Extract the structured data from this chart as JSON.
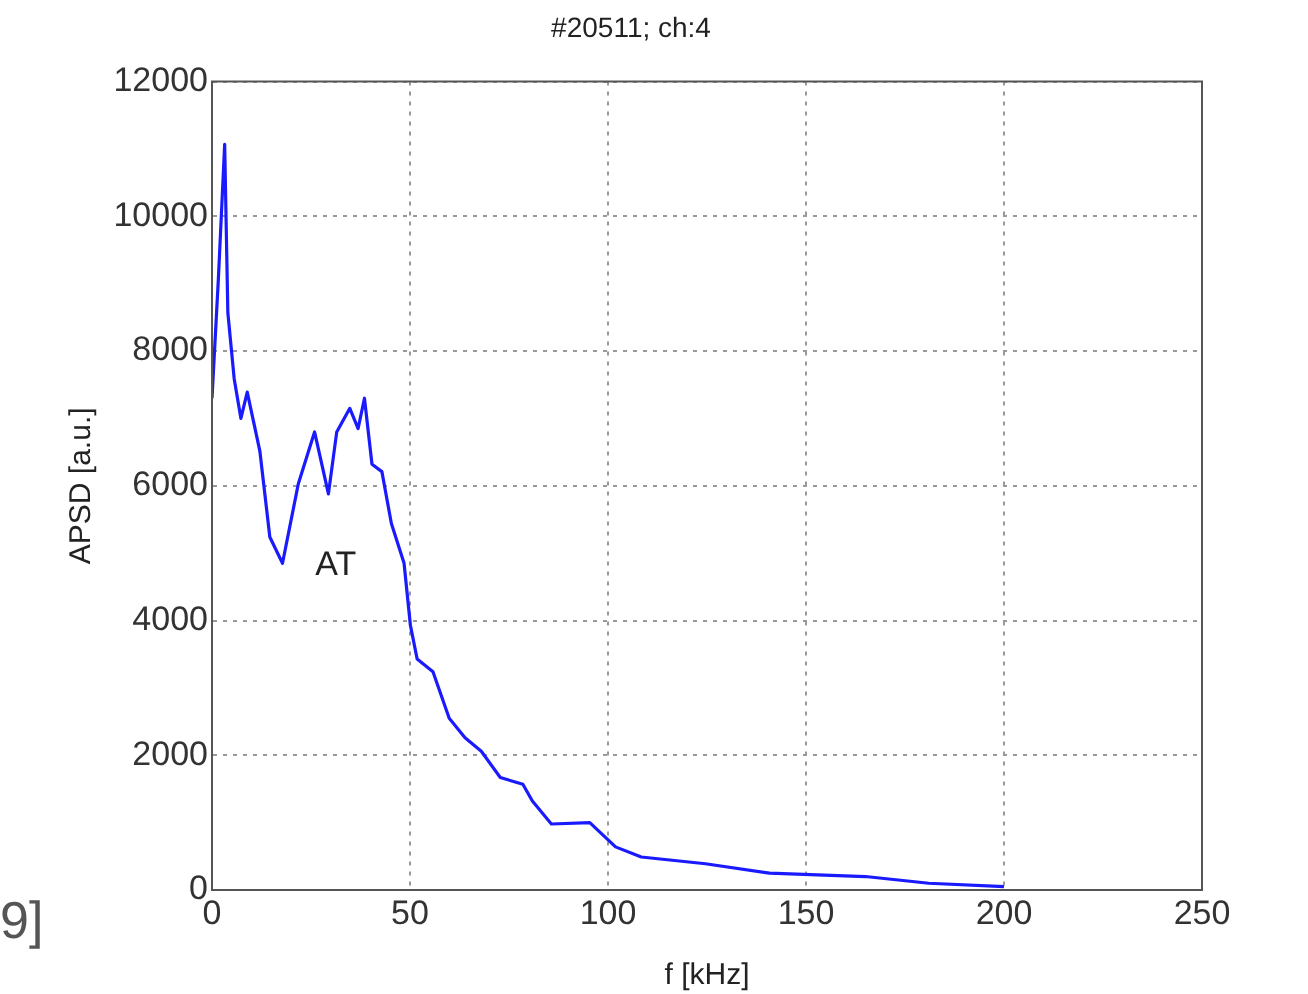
{
  "chart_data": {
    "type": "line",
    "title": "#20511; ch:4",
    "xlabel": "f [kHz]",
    "ylabel": "APSD [a.u.]",
    "annotations": [
      "AT",
      "9]"
    ],
    "xlim": [
      0,
      250
    ],
    "xticks": [
      0,
      50,
      100,
      150,
      200,
      250
    ],
    "ylim": [
      0,
      12000
    ],
    "yticks": [
      0,
      2000,
      4000,
      6000,
      8000,
      10000,
      12000
    ],
    "grid": true,
    "legend": false,
    "marker": "none",
    "line_style": "solid",
    "series": [
      {
        "color": "#1a1aff",
        "x": [
          0,
          1.6,
          3.2,
          4.0,
          5.6,
          7.3,
          8.9,
          12.1,
          14.6,
          17.8,
          21.8,
          25.9,
          29.4,
          31.5,
          34.8,
          36.9,
          38.5,
          40.4,
          42.9,
          45.3,
          48.5,
          50.1,
          51.8,
          55.8,
          59.9,
          63.9,
          68,
          72.8,
          78.5,
          80.9,
          85.7,
          95.4,
          101.9,
          108.4,
          124.6,
          140.8,
          165,
          181,
          200
        ],
        "values": [
          7300,
          9060,
          11070,
          8570,
          7590,
          7000,
          7390,
          6510,
          5240,
          4850,
          6030,
          6800,
          5880,
          6800,
          7150,
          6850,
          7300,
          6320,
          6210,
          5440,
          4850,
          3930,
          3430,
          3240,
          2550,
          2260,
          2060,
          1670,
          1570,
          1320,
          980,
          1000,
          640,
          490,
          390,
          250,
          200,
          100,
          50
        ]
      }
    ]
  }
}
